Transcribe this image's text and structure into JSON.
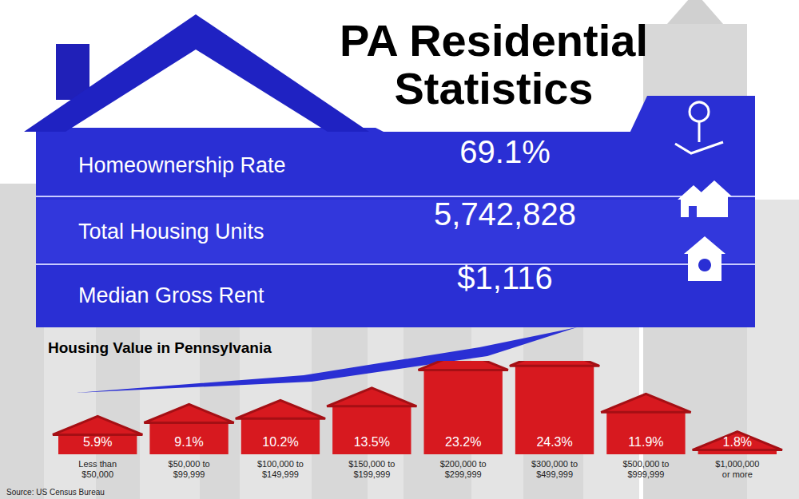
{
  "title": "PA Residential\nStatistics",
  "stats": [
    {
      "label": "Homeownership Rate",
      "value": "69.1%"
    },
    {
      "label": "Total Housing Units",
      "value": "5,742,828"
    },
    {
      "label": "Median Gross Rent",
      "value": "$1,116"
    }
  ],
  "chart_data": {
    "type": "bar",
    "title": "Housing Value in Pennsylvania",
    "categories": [
      "Less than\n$50,000",
      "$50,000 to\n$99,999",
      "$100,000 to\n$149,999",
      "$150,000 to\n$199,999",
      "$200,000 to\n$299,999",
      "$300,000 to\n$499,999",
      "$500,000 to\n$999,999",
      "$1,000,000\nor more"
    ],
    "values": [
      5.9,
      9.1,
      10.2,
      13.5,
      23.2,
      24.3,
      11.9,
      1.8
    ],
    "value_labels": [
      "5.9%",
      "9.1%",
      "10.2%",
      "13.5%",
      "23.2%",
      "24.3%",
      "11.9%",
      "1.8%"
    ],
    "color": "#d7191f",
    "data_labels": true,
    "ylim": [
      0,
      25
    ],
    "tick_labels": "x",
    "grid": false
  },
  "source": "Source: US Census Bureau"
}
